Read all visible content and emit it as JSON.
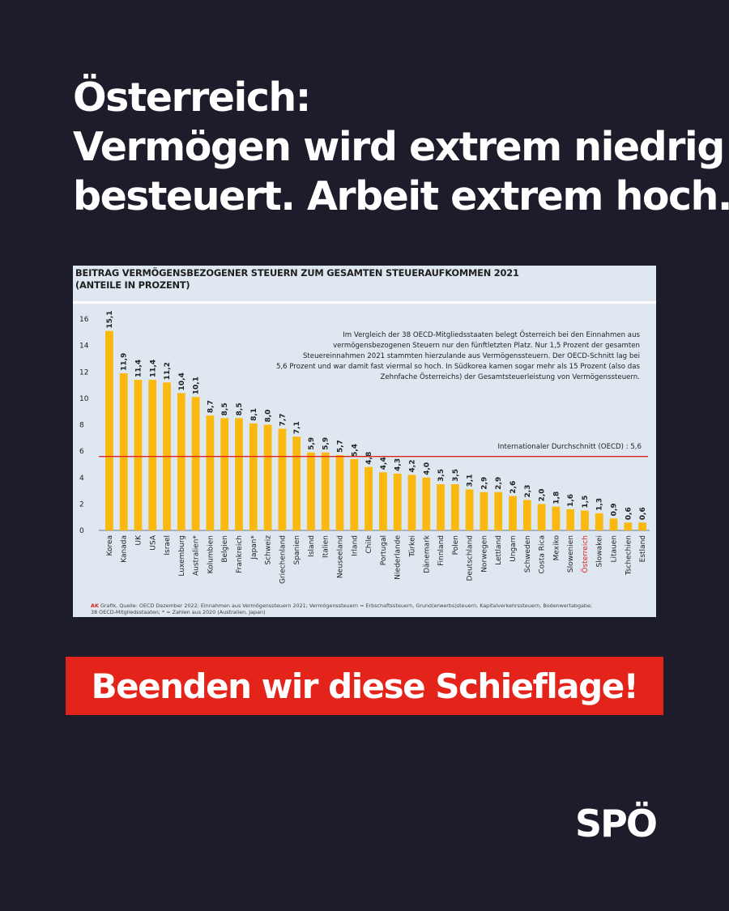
{
  "headline": {
    "line1": "Österreich:",
    "line2": "Vermögen wird extrem niedrig",
    "line3": "besteuert. Arbeit extrem hoch."
  },
  "chart_card": {
    "title_line1": "BEITRAG VERMÖGENSBEZOGENER STEUERN ZUM GESAMTEN STEUERAUFKOMMEN 2021",
    "title_line2": "(ANTEILE IN PROZENT)",
    "annotation_lines": [
      "Im Vergleich der 38 OECD-Mitgliedsstaaten belegt Österreich bei den Einnahmen aus",
      "vermögensbezogenen Steuern nur den fünftletzten Platz. Nur 1,5 Prozent der gesamten",
      "Steuereinnahmen 2021 stammten hierzulande aus Vermögenssteuern. Der OECD-Schnitt lag bei",
      "5,6 Prozent und war damit fast viermal so hoch. In Südkorea kamen sogar mehr als 15 Prozent (also das",
      "Zehnfache Österreichs) der Gesamtsteuerleistung von Vermögenssteuern."
    ],
    "footnote_ak": "AK",
    "footnote_line1": "Grafik, Quelle: OECD Dezember 2022; Einnahmen aus Vermögenssteuern 2021; Vermögenssteuern = Erbschaftssteuern, Grund(erwerbs)steuern, Kapitalverkehrssteuern, Bodenwertabgabe;",
    "footnote_line2": "38 OECD-Mitgliedsstaaten; * = Zahlen aus 2020 (Australien, Japan)"
  },
  "chart_data": {
    "type": "bar",
    "title": "BEITRAG VERMÖGENSBEZOGENER STEUERN ZUM GESAMTEN STEUERAUFKOMMEN 2021 (ANTEILE IN PROZENT)",
    "categories": [
      "Korea",
      "Kanada",
      "UK",
      "USA",
      "Israel",
      "Luxemburg",
      "Australien*",
      "Kolumbien",
      "Belgien",
      "Frankreich",
      "Japan*",
      "Schweiz",
      "Griechenland",
      "Spanien",
      "Island",
      "Italien",
      "Neuseeland",
      "Irland",
      "Chile",
      "Portugal",
      "Niederlande",
      "Türkei",
      "Dänemark",
      "Finnland",
      "Polen",
      "Deutschland",
      "Norwegen",
      "Lettland",
      "Ungarn",
      "Schweden",
      "Costa Rica",
      "Mexiko",
      "Slowenien",
      "Österreich",
      "Slowakei",
      "Litauen",
      "Tschechien",
      "Estland"
    ],
    "values": [
      15.1,
      11.9,
      11.4,
      11.4,
      11.2,
      10.4,
      10.1,
      8.7,
      8.5,
      8.5,
      8.1,
      8.0,
      7.7,
      7.1,
      5.9,
      5.9,
      5.7,
      5.4,
      4.8,
      4.4,
      4.3,
      4.2,
      4.0,
      3.5,
      3.5,
      3.1,
      2.9,
      2.9,
      2.6,
      2.3,
      2.0,
      1.8,
      1.6,
      1.5,
      1.3,
      0.9,
      0.6,
      0.6
    ],
    "value_labels": [
      "15,1",
      "11,9",
      "11,4",
      "11,4",
      "11,2",
      "10,4",
      "10,1",
      "8,7",
      "8,5",
      "8,5",
      "8,1",
      "8,0",
      "7,7",
      "7,1",
      "5,9",
      "5,9",
      "5,7",
      "5,4",
      "4,8",
      "4,4",
      "4,3",
      "4,2",
      "4,0",
      "3,5",
      "3,5",
      "3,1",
      "2,9",
      "2,9",
      "2,6",
      "2,3",
      "2,0",
      "1,8",
      "1,6",
      "1,5",
      "1,3",
      "0,9",
      "0,6",
      "0,6"
    ],
    "highlight": "Österreich",
    "highlight_color": "#d9261c",
    "bar_color": "#fbb910",
    "yticks": [
      0,
      2,
      4,
      6,
      8,
      10,
      12,
      14,
      16
    ],
    "ylim": [
      0,
      16
    ],
    "reference_line": {
      "value": 5.6,
      "label": "Internationaler Durchschnitt (OECD) : 5,6",
      "color": "#d9261c"
    },
    "grid": false
  },
  "cta": {
    "label": "Beenden wir diese Schieflage!"
  },
  "logo": {
    "text": "SPÖ"
  }
}
